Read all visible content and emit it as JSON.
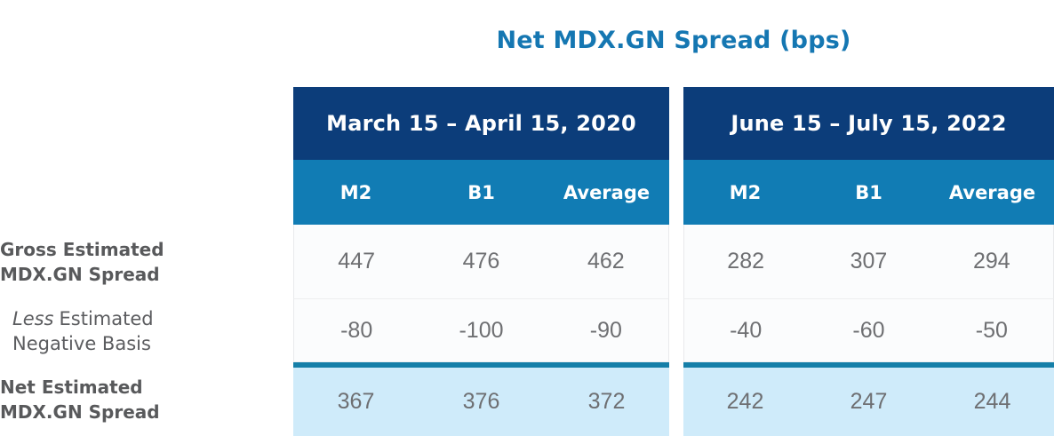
{
  "title": "Net MDX.GN Spread (bps)",
  "colors": {
    "title_blue": "#1577B2",
    "header_navy": "#0C3D7A",
    "subheader_blue": "#117CB4",
    "net_row_light_blue": "#CFEBFA",
    "net_row_top_border": "#157FA8",
    "value_gray": "#6E6F72",
    "label_gray": "#58595B"
  },
  "row_labels": [
    {
      "line1": "Gross Estimated",
      "line2": "MDX.GN Spread"
    },
    {
      "italic_word": "Less",
      "line1_rest": "Estimated",
      "line2": "Negative Basis"
    },
    {
      "line1": "Net Estimated",
      "line2": "MDX.GN Spread"
    }
  ],
  "panels": [
    {
      "period": "March 15 – April 15, 2020",
      "columns": [
        "M2",
        "B1",
        "Average"
      ],
      "values": [
        [
          "447",
          "476",
          "462"
        ],
        [
          "-80",
          "-100",
          "-90"
        ],
        [
          "367",
          "376",
          "372"
        ]
      ]
    },
    {
      "period": "June 15 – July 15, 2022",
      "columns": [
        "M2",
        "B1",
        "Average"
      ],
      "values": [
        [
          "282",
          "307",
          "294"
        ],
        [
          "-40",
          "-60",
          "-50"
        ],
        [
          "242",
          "247",
          "244"
        ]
      ]
    }
  ],
  "chart_data": {
    "type": "table",
    "title": "Net MDX.GN Spread (bps)",
    "column_groups": [
      "March 15 – April 15, 2020",
      "June 15 – July 15, 2022"
    ],
    "columns": [
      "M2",
      "B1",
      "Average",
      "M2",
      "B1",
      "Average"
    ],
    "rows": [
      {
        "label": "Gross Estimated MDX.GN Spread",
        "values": [
          447,
          476,
          462,
          282,
          307,
          294
        ]
      },
      {
        "label": "Less Estimated Negative Basis",
        "values": [
          -80,
          -100,
          -90,
          -40,
          -60,
          -50
        ]
      },
      {
        "label": "Net Estimated MDX.GN Spread",
        "values": [
          367,
          376,
          372,
          242,
          247,
          244
        ]
      }
    ]
  }
}
